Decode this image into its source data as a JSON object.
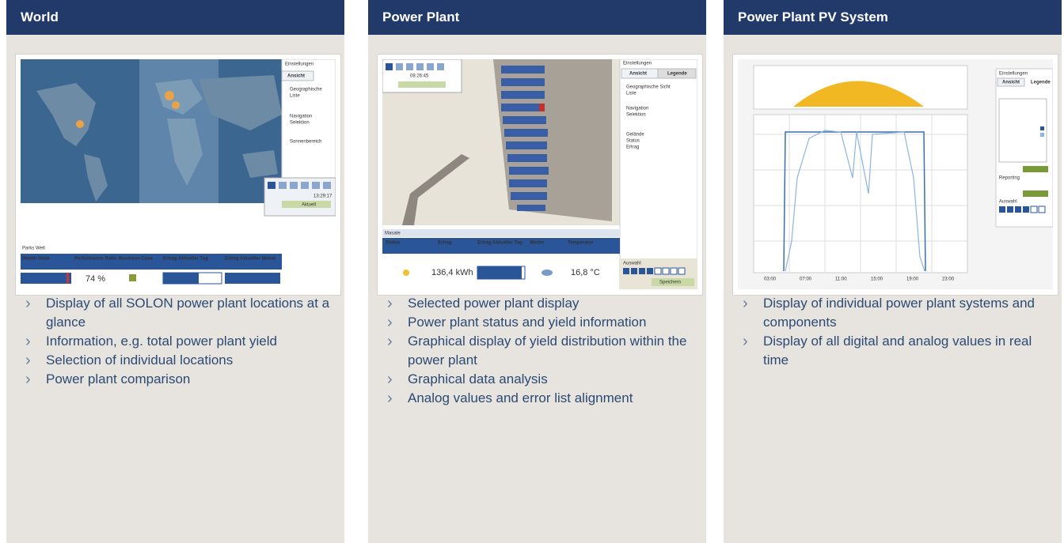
{
  "panels": [
    {
      "title": "World",
      "screenshot": {
        "settings": [
          "Einstellungen",
          "Ansicht",
          "Geographische",
          "Liste",
          "Navigation",
          "Selektion",
          "Sonnenbereich"
        ],
        "time": "13:29:17",
        "button": "Aktuell",
        "list_title": "Parks Welt",
        "columns": [
          "Health State",
          "Performance Ratio",
          "Business Case",
          "Ertrag Aktueller Tag",
          "Ertrag Aktueller Monat"
        ],
        "ratio": "74 %"
      },
      "bullets": [
        "Display of all SOLON power plant locations at a glance",
        "Information, e.g. total power plant yield",
        "Selection of individual locations",
        "Power plant comparison"
      ]
    },
    {
      "title": "Power Plant",
      "screenshot": {
        "time": "08:26:45",
        "settings": [
          "Einstellungen",
          "Ansicht",
          "Legende",
          "Geographische Sicht",
          "Liste",
          "Navigation",
          "Selektion",
          "Gelände",
          "Status",
          "Ertrag"
        ],
        "list_title": "Masate",
        "columns": [
          "Status",
          "Ertrag",
          "Ertrag Aktueller Tag",
          "Wetter",
          "Temperatur"
        ],
        "yield": "136,4 kWh",
        "temperature": "16,8 °C",
        "selection": "Auswahl",
        "button": "Speichern"
      },
      "bullets": [
        "Selected power plant display",
        "Power plant status and yield information",
        "Graphical display of yield distribution within the power plant",
        "Graphical data analysis",
        "Analog values and error list alignment"
      ]
    },
    {
      "title": "Power Plant PV System",
      "screenshot": {
        "settings": [
          "Einstellungen",
          "Ansicht",
          "Legende",
          "Reporting",
          "Auswahl"
        ],
        "x_labels": [
          "03:00",
          "07:00",
          "11:00",
          "15:00",
          "19:00",
          "23:00"
        ]
      },
      "bullets": [
        "Display of individual power plant systems and components",
        "Display of all digital and analog values in real time"
      ]
    }
  ]
}
